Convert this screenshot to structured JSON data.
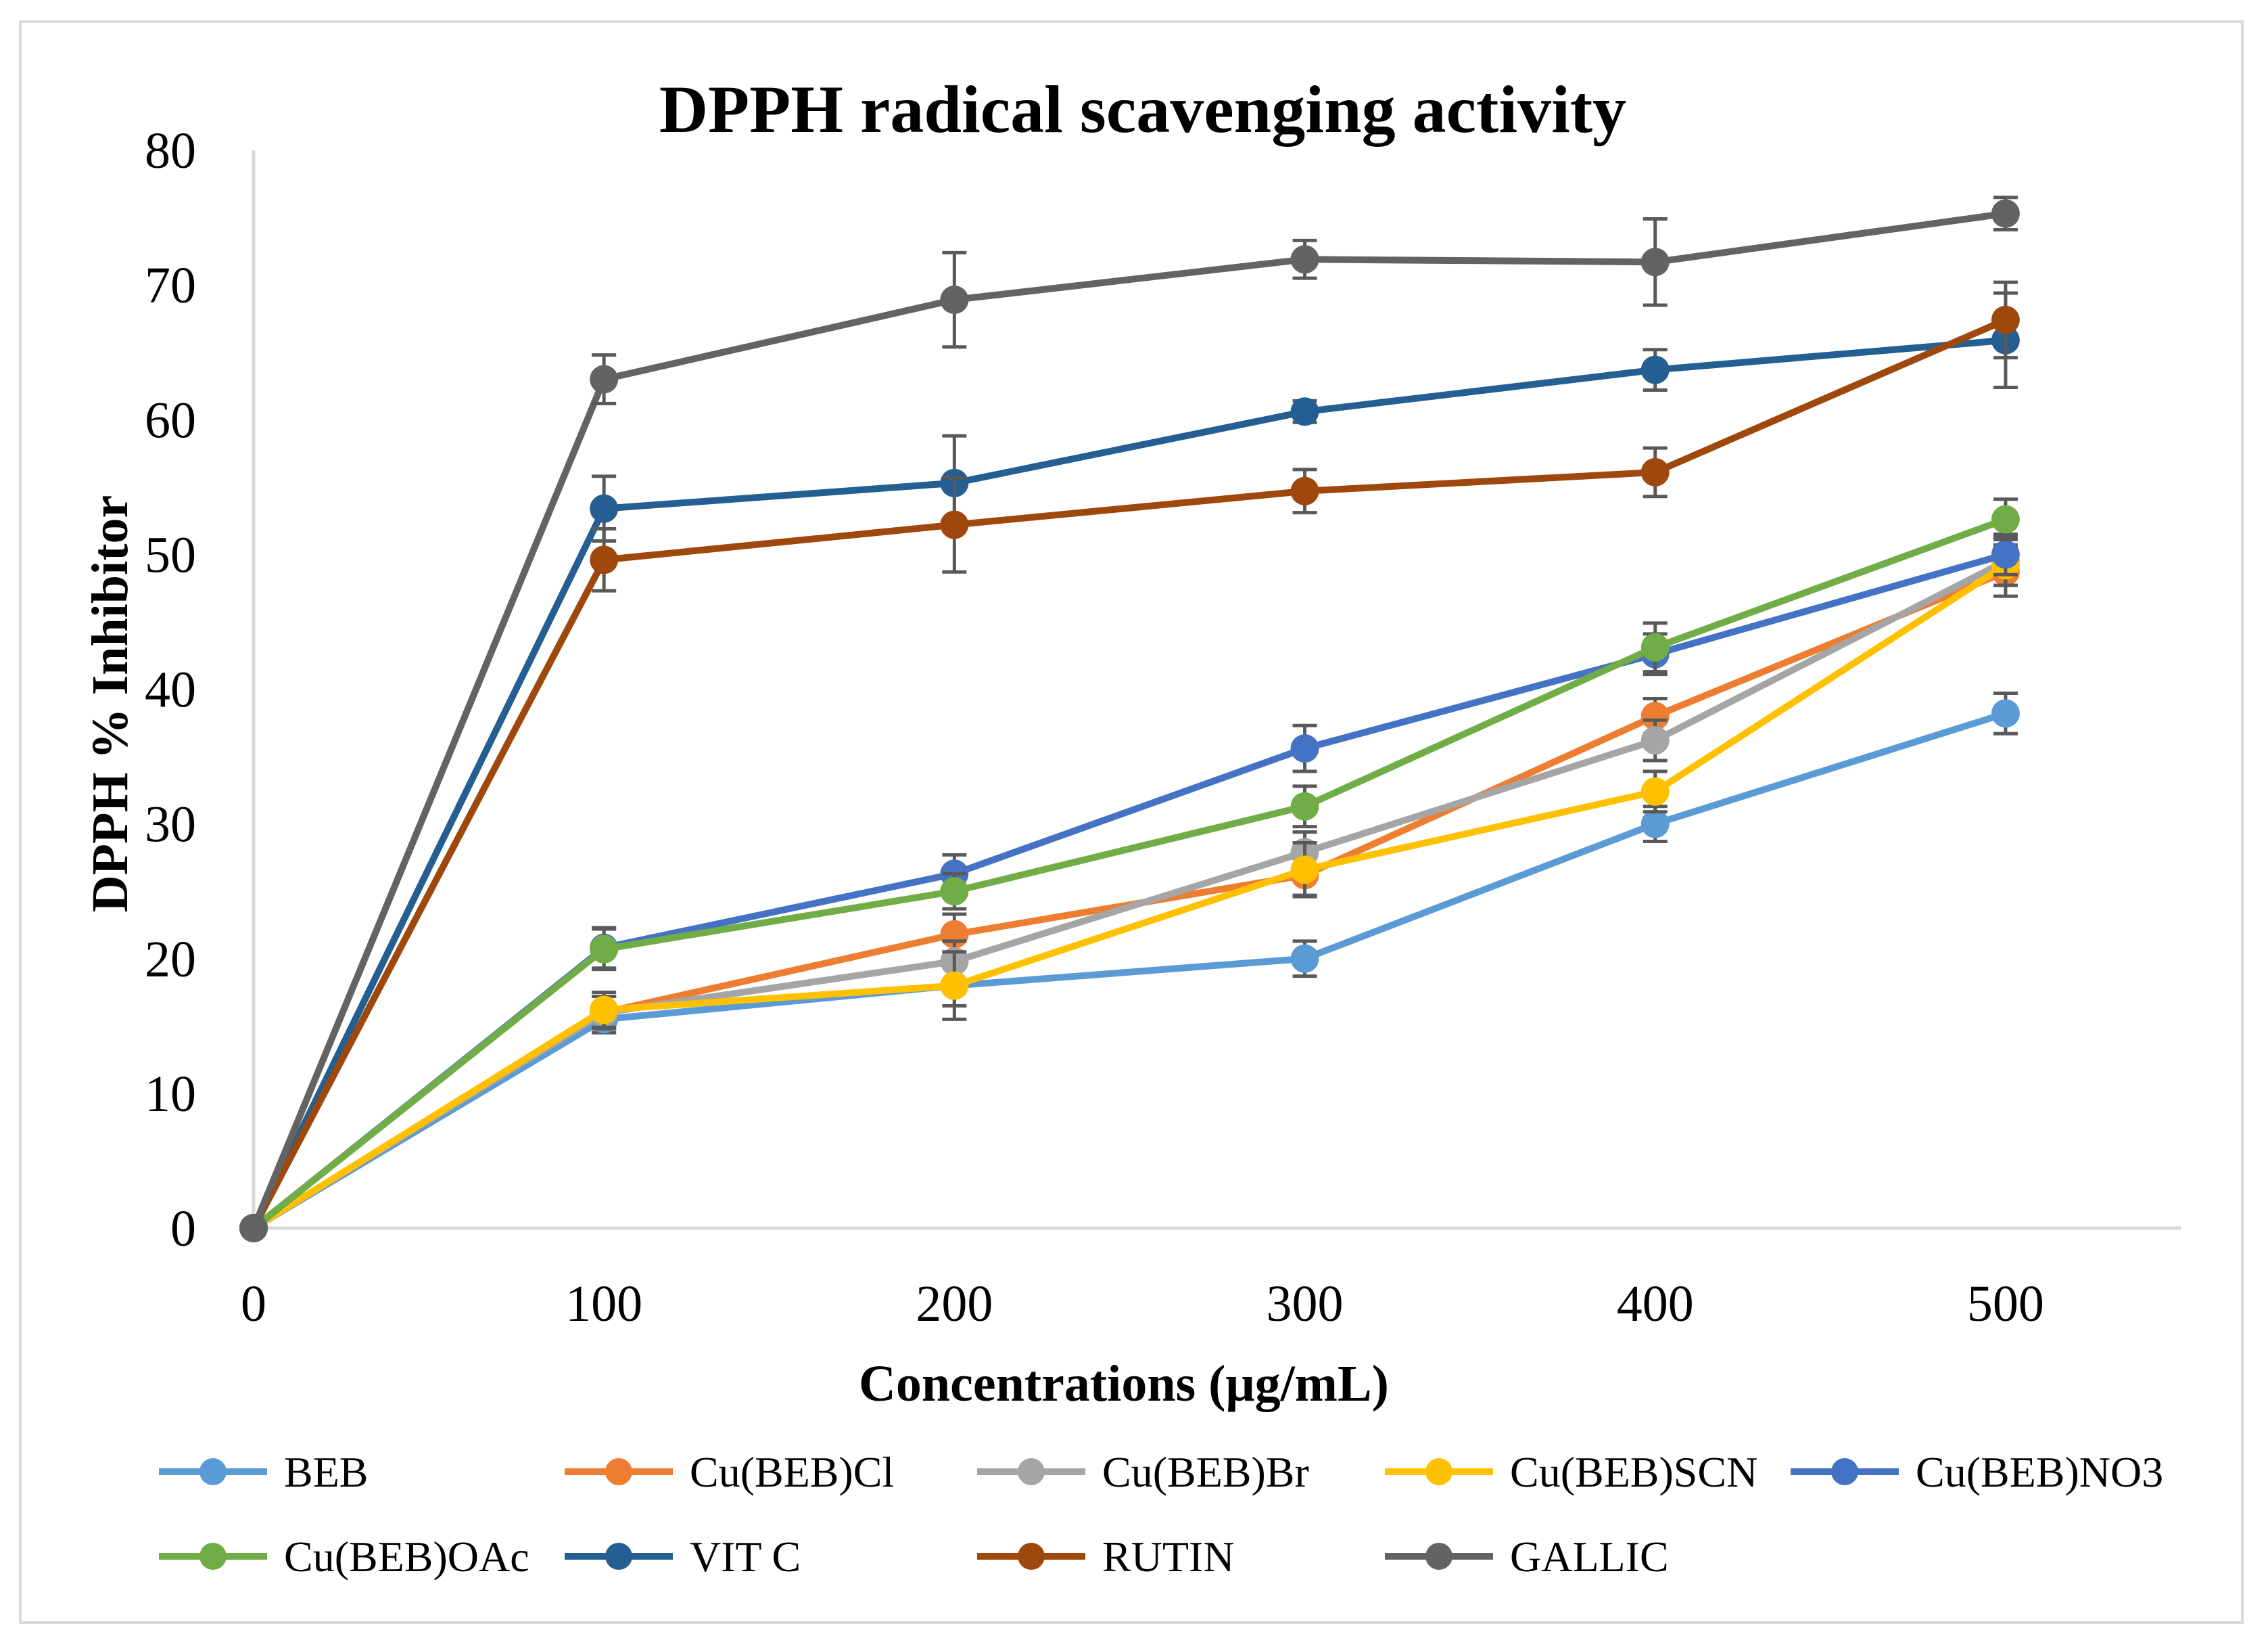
{
  "chart_data": {
    "type": "line",
    "title": "DPPH radical scavenging activity",
    "xlabel": "Concentrations (μg/mL)",
    "ylabel": "DPPH % Inhibitor",
    "x": [
      0,
      100,
      200,
      300,
      400,
      500
    ],
    "x_tick_labels": [
      "0",
      "100",
      "200",
      "300",
      "400",
      "500"
    ],
    "xlim": [
      0,
      550
    ],
    "ylim": [
      0,
      80
    ],
    "y_ticks": [
      0,
      10,
      20,
      30,
      40,
      50,
      60,
      70,
      80
    ],
    "y_tick_labels": [
      "0",
      "10",
      "20",
      "30",
      "40",
      "50",
      "60",
      "70",
      "80"
    ],
    "grid": false,
    "legend_position": "bottom",
    "error_bar_color": "#595959",
    "series": [
      {
        "name": "BEB",
        "color": "#5b9bd5",
        "values": [
          0,
          15.5,
          18,
          20,
          30,
          38.2
        ],
        "errors": [
          0,
          1.0,
          1.5,
          1.3,
          1.3,
          1.5
        ]
      },
      {
        "name": "Cu(BEB)Cl",
        "color": "#ed7d31",
        "values": [
          0,
          16,
          21.8,
          26.2,
          38,
          48.7
        ],
        "errors": [
          0,
          1.2,
          1.5,
          1.5,
          1.3,
          1.8
        ]
      },
      {
        "name": "Cu(BEB)Br",
        "color": "#a5a5a5",
        "values": [
          0,
          16,
          19.8,
          27.9,
          36.2,
          49.5
        ],
        "errors": [
          0,
          1.2,
          1.5,
          1.5,
          1.5,
          1.8
        ]
      },
      {
        "name": "Cu(BEB)SCN",
        "color": "#ffc000",
        "values": [
          0,
          16.2,
          18,
          26.6,
          32.4,
          49.2
        ],
        "errors": [
          0,
          1.3,
          2.5,
          2.0,
          1.5,
          1.5
        ]
      },
      {
        "name": "Cu(BEB)NO3",
        "color": "#4472c4",
        "values": [
          0,
          20.8,
          26.3,
          35.6,
          42.6,
          50
        ],
        "errors": [
          0,
          1.5,
          1.4,
          1.7,
          1.5,
          1.5
        ]
      },
      {
        "name": "Cu(BEB)OAc",
        "color": "#70ad47",
        "values": [
          0,
          20.7,
          25,
          31.3,
          43.1,
          52.6
        ],
        "errors": [
          0,
          1.5,
          1.3,
          1.5,
          1.8,
          1.5
        ]
      },
      {
        "name": "VIT C",
        "color": "#255e91",
        "values": [
          0,
          53.4,
          55.3,
          60.6,
          63.7,
          65.9
        ],
        "errors": [
          0,
          2.4,
          3.5,
          0.8,
          1.5,
          3.5
        ]
      },
      {
        "name": "RUTIN",
        "color": "#9e480e",
        "values": [
          0,
          49.6,
          52.2,
          54.7,
          56.1,
          67.4
        ],
        "errors": [
          0,
          2.3,
          3.5,
          1.6,
          1.8,
          2.8
        ]
      },
      {
        "name": "GALLIC",
        "color": "#636363",
        "values": [
          0,
          63,
          68.9,
          71.9,
          71.7,
          75.3
        ],
        "errors": [
          0,
          1.8,
          3.5,
          1.4,
          3.2,
          1.2
        ]
      }
    ]
  }
}
